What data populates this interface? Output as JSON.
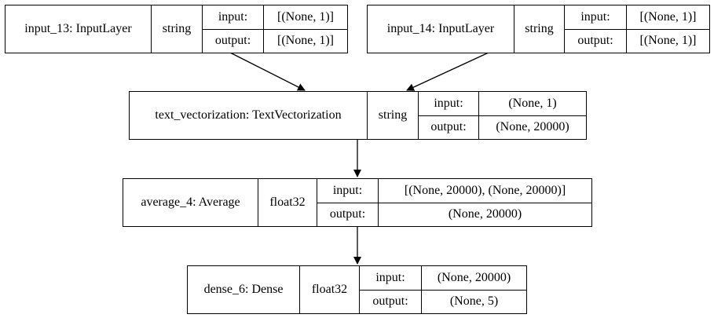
{
  "nodes": {
    "input_13": {
      "name": "input_13: InputLayer",
      "dtype": "string",
      "input_label": "input:",
      "input_shape": "[(None, 1)]",
      "output_label": "output:",
      "output_shape": "[(None, 1)]"
    },
    "input_14": {
      "name": "input_14: InputLayer",
      "dtype": "string",
      "input_label": "input:",
      "input_shape": "[(None, 1)]",
      "output_label": "output:",
      "output_shape": "[(None, 1)]"
    },
    "text_vectorization": {
      "name": "text_vectorization: TextVectorization",
      "dtype": "string",
      "input_label": "input:",
      "input_shape": "(None, 1)",
      "output_label": "output:",
      "output_shape": "(None, 20000)"
    },
    "average_4": {
      "name": "average_4: Average",
      "dtype": "float32",
      "input_label": "input:",
      "input_shape": "[(None, 20000), (None, 20000)]",
      "output_label": "output:",
      "output_shape": "(None, 20000)"
    },
    "dense_6": {
      "name": "dense_6: Dense",
      "dtype": "float32",
      "input_label": "input:",
      "input_shape": "(None, 20000)",
      "output_label": "output:",
      "output_shape": "(None, 5)"
    }
  },
  "edges": [
    {
      "from": "input_13",
      "to": "text_vectorization"
    },
    {
      "from": "input_14",
      "to": "text_vectorization"
    },
    {
      "from": "text_vectorization",
      "to": "average_4"
    },
    {
      "from": "average_4",
      "to": "dense_6"
    }
  ]
}
